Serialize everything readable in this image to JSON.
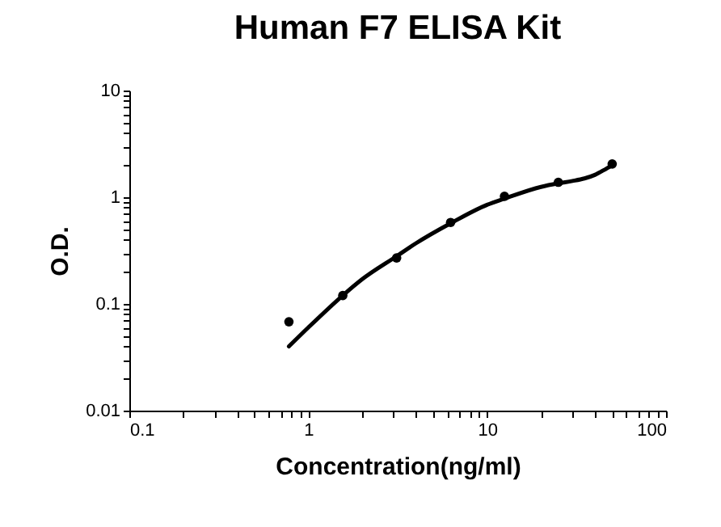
{
  "chart_data": {
    "type": "scatter",
    "title": "Human F7 ELISA Kit",
    "xlabel": "Concentration(ng/ml)",
    "ylabel": "O.D.",
    "log": "xy",
    "grid": false,
    "marker": "circle",
    "xlim": [
      0.1,
      100
    ],
    "ylim": [
      0.01,
      10
    ],
    "xticks": [
      0.1,
      {
        "value": 0.2,
        "label": null
      },
      {
        "value": 0.3,
        "label": null
      },
      {
        "value": 0.4,
        "label": null
      },
      {
        "value": 0.5,
        "label": null
      },
      {
        "value": 0.6,
        "label": null
      },
      {
        "value": 0.7,
        "label": null
      },
      {
        "value": 0.8,
        "label": null
      },
      {
        "value": 0.9,
        "label": null
      },
      1,
      {
        "value": 2,
        "label": null
      },
      {
        "value": 3,
        "label": null
      },
      {
        "value": 4,
        "label": null
      },
      {
        "value": 5,
        "label": null
      },
      {
        "value": 6,
        "label": null
      },
      {
        "value": 7,
        "label": null
      },
      {
        "value": 8,
        "label": null
      },
      {
        "value": 9,
        "label": null
      },
      10,
      {
        "value": 20,
        "label": null
      },
      {
        "value": 30,
        "label": null
      },
      {
        "value": 40,
        "label": null
      },
      {
        "value": 50,
        "label": null
      },
      {
        "value": 60,
        "label": null
      },
      {
        "value": 70,
        "label": null
      },
      {
        "value": 80,
        "label": null
      },
      {
        "value": 90,
        "label": null
      },
      100
    ],
    "yticks": [
      0.01,
      {
        "value": 0.02,
        "label": null
      },
      {
        "value": 0.03,
        "label": null
      },
      {
        "value": 0.04,
        "label": null
      },
      {
        "value": 0.05,
        "label": null
      },
      {
        "value": 0.06,
        "label": null
      },
      {
        "value": 0.07,
        "label": null
      },
      {
        "value": 0.08,
        "label": null
      },
      {
        "value": 0.09,
        "label": null
      },
      0.1,
      {
        "value": 0.2,
        "label": null
      },
      {
        "value": 0.3,
        "label": null
      },
      {
        "value": 0.4,
        "label": null
      },
      {
        "value": 0.5,
        "label": null
      },
      {
        "value": 0.6,
        "label": null
      },
      {
        "value": 0.7,
        "label": null
      },
      {
        "value": 0.8,
        "label": null
      },
      {
        "value": 0.9,
        "label": null
      },
      1,
      {
        "value": 2,
        "label": null
      },
      {
        "value": 3,
        "label": null
      },
      {
        "value": 4,
        "label": null
      },
      {
        "value": 5,
        "label": null
      },
      {
        "value": 6,
        "label": null
      },
      {
        "value": 7,
        "label": null
      },
      {
        "value": 8,
        "label": null
      },
      {
        "value": 9,
        "label": null
      },
      10
    ],
    "series": [
      {
        "color": "#000000",
        "x": [
          0.78,
          1.56,
          3.12,
          6.25,
          12.5,
          25,
          50
        ],
        "values": [
          0.068,
          0.12,
          0.27,
          0.58,
          1.02,
          1.38,
          2.05
        ]
      },
      {
        "type": "line",
        "color": "#000000",
        "marker": "none",
        "line_style": "solid",
        "x": [
          0.78,
          1,
          1.56,
          2,
          3.12,
          4,
          6.25,
          10,
          12.5,
          20,
          25,
          30,
          35,
          40,
          45,
          50
        ],
        "values": [
          0.04,
          0.06,
          0.12,
          0.17,
          0.28,
          0.37,
          0.57,
          0.85,
          0.97,
          1.25,
          1.35,
          1.42,
          1.5,
          1.62,
          1.8,
          2.0
        ]
      }
    ]
  }
}
